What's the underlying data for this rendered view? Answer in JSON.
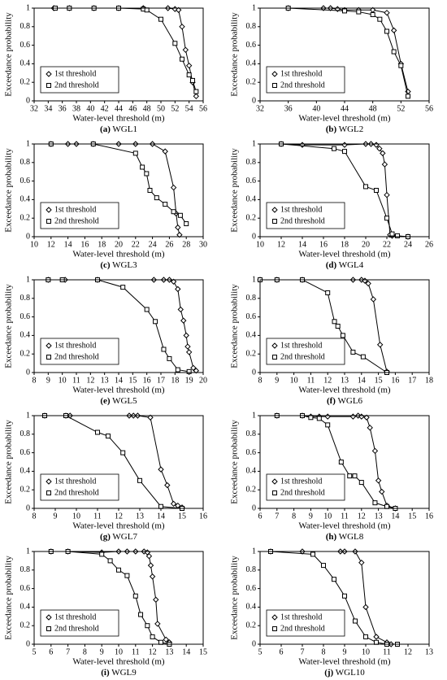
{
  "chart_data": [
    {
      "type": "line",
      "panel": "(a)",
      "title": "WGL1",
      "xlabel": "Water-level threshold (m)",
      "ylabel": "Exceedance probability",
      "xlim": [
        32,
        56
      ],
      "xticks": [
        32,
        34,
        36,
        38,
        40,
        42,
        44,
        46,
        48,
        50,
        52,
        54,
        56
      ],
      "ylim": [
        0,
        1
      ],
      "yticks": [
        0,
        0.2,
        0.4,
        0.6,
        0.8,
        1
      ],
      "legend": "lower left",
      "series": [
        {
          "name": "1st threshold",
          "color": "#000000",
          "marker": "diamond",
          "x": [
            34.8,
            37,
            40.5,
            44,
            47.5,
            51,
            52,
            52.5,
            53,
            53.5,
            54,
            54.5,
            55
          ],
          "values": [
            1,
            1,
            1,
            1,
            1,
            1,
            0.99,
            0.98,
            0.8,
            0.55,
            0.38,
            0.2,
            0.05
          ]
        },
        {
          "name": "2nd threshold",
          "color": "#000000",
          "marker": "square",
          "x": [
            35,
            37,
            40.5,
            44,
            47.5,
            48,
            50,
            52,
            53,
            54,
            54.5,
            55
          ],
          "values": [
            1,
            1,
            1,
            1,
            0.99,
            0.98,
            0.88,
            0.62,
            0.45,
            0.28,
            0.22,
            0.1
          ]
        }
      ]
    },
    {
      "type": "line",
      "panel": "(b)",
      "title": "WGL2",
      "xlabel": "Water-level threshold (m)",
      "ylabel": "Exceedance probability",
      "xlim": [
        32,
        56
      ],
      "xticks": [
        32,
        36,
        40,
        44,
        48,
        52,
        56
      ],
      "ylim": [
        0,
        1
      ],
      "yticks": [
        0,
        0.2,
        0.4,
        0.6,
        0.8,
        1
      ],
      "legend": "lower left",
      "series": [
        {
          "name": "1st threshold",
          "color": "#000000",
          "marker": "diamond",
          "x": [
            36,
            41,
            42,
            43,
            44,
            46,
            48,
            50,
            51,
            52,
            53
          ],
          "values": [
            1,
            1,
            1,
            0.99,
            0.98,
            0.98,
            0.98,
            0.95,
            0.76,
            0.4,
            0.1
          ]
        },
        {
          "name": "2nd threshold",
          "color": "#000000",
          "marker": "square",
          "x": [
            36,
            44,
            46,
            48,
            49,
            50,
            51,
            52,
            53
          ],
          "values": [
            1,
            0.97,
            0.96,
            0.93,
            0.88,
            0.75,
            0.53,
            0.38,
            0.05
          ]
        }
      ]
    },
    {
      "type": "line",
      "panel": "(c)",
      "title": "WGL3",
      "xlabel": "Water-level threshold (m)",
      "ylabel": "Exceedance probability",
      "xlim": [
        10,
        30
      ],
      "xticks": [
        10,
        12,
        14,
        16,
        18,
        20,
        22,
        24,
        26,
        28,
        30
      ],
      "ylim": [
        0,
        1
      ],
      "yticks": [
        0,
        0.2,
        0.4,
        0.6,
        0.8,
        1
      ],
      "legend": "lower left",
      "series": [
        {
          "name": "1st threshold",
          "color": "#000000",
          "marker": "diamond",
          "x": [
            12,
            14,
            15,
            17,
            20,
            22,
            24,
            25.5,
            26.5,
            26.8,
            27,
            27.2
          ],
          "values": [
            1,
            1,
            1,
            1,
            1,
            1,
            1,
            0.92,
            0.53,
            0.25,
            0.1,
            0.02
          ]
        },
        {
          "name": "2nd threshold",
          "color": "#000000",
          "marker": "square",
          "x": [
            12,
            17,
            22,
            22.8,
            23.3,
            23.7,
            24.5,
            25.5,
            26.5,
            27.3,
            28
          ],
          "values": [
            1,
            1,
            0.9,
            0.75,
            0.68,
            0.5,
            0.42,
            0.35,
            0.27,
            0.23,
            0.14
          ]
        }
      ]
    },
    {
      "type": "line",
      "panel": "(d)",
      "title": "WGL4",
      "xlabel": "Water-level threshold (m)",
      "ylabel": "Exceedance probability",
      "xlim": [
        10,
        26
      ],
      "xticks": [
        10,
        12,
        14,
        16,
        18,
        20,
        22,
        24,
        26
      ],
      "ylim": [
        0,
        1
      ],
      "yticks": [
        0,
        0.2,
        0.4,
        0.6,
        0.8,
        1
      ],
      "legend": "lower left",
      "series": [
        {
          "name": "1st threshold",
          "color": "#000000",
          "marker": "diamond",
          "x": [
            12,
            14,
            18,
            20,
            20.5,
            21,
            21.3,
            21.6,
            21.8,
            22,
            22.3,
            22.5,
            24
          ],
          "values": [
            1,
            0.99,
            0.99,
            1,
            1,
            0.99,
            0.95,
            0.9,
            0.78,
            0.45,
            0.02,
            0.01,
            0
          ]
        },
        {
          "name": "2nd threshold",
          "color": "#000000",
          "marker": "square",
          "x": [
            12,
            17,
            18,
            20,
            21,
            22,
            22.5,
            23,
            24
          ],
          "values": [
            1,
            0.95,
            0.92,
            0.54,
            0.5,
            0.2,
            0.03,
            0.01,
            0
          ]
        }
      ]
    },
    {
      "type": "line",
      "panel": "(e)",
      "title": "WGL5",
      "xlabel": "Water-level threshold (m)",
      "ylabel": "Exceedance probability",
      "xlim": [
        8,
        20
      ],
      "xticks": [
        8,
        9,
        10,
        11,
        12,
        13,
        14,
        15,
        16,
        17,
        18,
        19,
        20
      ],
      "ylim": [
        0,
        1
      ],
      "yticks": [
        0,
        0.2,
        0.4,
        0.6,
        0.8,
        1
      ],
      "legend": "lower left",
      "series": [
        {
          "name": "1st threshold",
          "color": "#000000",
          "marker": "diamond",
          "x": [
            9,
            10.2,
            12.5,
            16.5,
            17.2,
            17.6,
            17.9,
            18.2,
            18.4,
            18.6,
            18.8,
            18.9,
            19,
            19.3,
            19.5
          ],
          "values": [
            1,
            1,
            1,
            1,
            1,
            1,
            0.98,
            0.9,
            0.68,
            0.56,
            0.4,
            0.28,
            0.22,
            0.05,
            0.02
          ]
        },
        {
          "name": "2nd threshold",
          "color": "#000000",
          "marker": "square",
          "x": [
            9,
            10,
            12.5,
            14.3,
            16,
            16.6,
            17.2,
            17.6,
            18.2,
            19
          ],
          "values": [
            1,
            1,
            1,
            0.92,
            0.68,
            0.55,
            0.25,
            0.15,
            0.03,
            0.01
          ]
        }
      ]
    },
    {
      "type": "line",
      "panel": "(f)",
      "title": "WGL6",
      "xlabel": "Water-level threshold (m)",
      "ylabel": "Exceedance probability",
      "xlim": [
        8,
        18
      ],
      "xticks": [
        8,
        9,
        10,
        11,
        12,
        13,
        14,
        15,
        16,
        17,
        18
      ],
      "ylim": [
        0,
        1
      ],
      "yticks": [
        0,
        0.2,
        0.4,
        0.6,
        0.8,
        1
      ],
      "legend": "lower left",
      "series": [
        {
          "name": "1st threshold",
          "color": "#000000",
          "marker": "diamond",
          "x": [
            8,
            9,
            10.5,
            13.5,
            14,
            14.2,
            14.4,
            14.7,
            15.1,
            15.5
          ],
          "values": [
            1,
            1,
            1,
            1,
            1,
            0.99,
            0.96,
            0.79,
            0.3,
            0.01
          ]
        },
        {
          "name": "2nd threshold",
          "color": "#000000",
          "marker": "square",
          "x": [
            8,
            9,
            10.5,
            12,
            12.4,
            12.6,
            12.9,
            13.5,
            14.1,
            15.5
          ],
          "values": [
            1,
            1,
            1,
            0.86,
            0.55,
            0.5,
            0.4,
            0.22,
            0.17,
            0
          ]
        }
      ]
    },
    {
      "type": "line",
      "panel": "(g)",
      "title": "WGL7",
      "xlabel": "Water-level threshold (m)",
      "ylabel": "Exceedance probability",
      "xlim": [
        8,
        16
      ],
      "xticks": [
        8,
        9,
        10,
        11,
        12,
        13,
        14,
        15,
        16
      ],
      "ylim": [
        0,
        1
      ],
      "yticks": [
        0,
        0.2,
        0.4,
        0.6,
        0.8,
        1
      ],
      "legend": "lower left",
      "series": [
        {
          "name": "1st threshold",
          "color": "#000000",
          "marker": "diamond",
          "x": [
            8.5,
            9.5,
            9.7,
            12.5,
            12.7,
            12.9,
            13.5,
            14,
            14.3,
            14.6,
            14.8,
            15
          ],
          "values": [
            1,
            1,
            1,
            1,
            1,
            1,
            0.98,
            0.42,
            0.25,
            0.05,
            0.03,
            0.01
          ]
        },
        {
          "name": "2nd threshold",
          "color": "#000000",
          "marker": "square",
          "x": [
            8.5,
            9.5,
            11,
            11.5,
            12.2,
            13,
            14,
            15
          ],
          "values": [
            1,
            1,
            0.82,
            0.78,
            0.6,
            0.3,
            0.02,
            0
          ]
        }
      ]
    },
    {
      "type": "line",
      "panel": "(h)",
      "title": "WGL8",
      "xlabel": "Water-level threshold (m)",
      "ylabel": "Exceedance probability",
      "xlim": [
        6,
        16
      ],
      "xticks": [
        6,
        7,
        8,
        9,
        10,
        11,
        12,
        13,
        14,
        15,
        16
      ],
      "ylim": [
        0,
        1
      ],
      "yticks": [
        0,
        0.2,
        0.4,
        0.6,
        0.8,
        1
      ],
      "legend": "lower left",
      "series": [
        {
          "name": "1st threshold",
          "color": "#000000",
          "marker": "diamond",
          "x": [
            7,
            8.5,
            9,
            9.5,
            10,
            11.5,
            11.8,
            12,
            12.3,
            12.5,
            12.8,
            13,
            13.2,
            13.5,
            14
          ],
          "values": [
            1,
            1,
            0.99,
            0.99,
            0.99,
            0.99,
            1,
            0.99,
            0.98,
            0.87,
            0.62,
            0.3,
            0.18,
            0.03,
            0
          ]
        },
        {
          "name": "2nd threshold",
          "color": "#000000",
          "marker": "square",
          "x": [
            7,
            8.5,
            9,
            9.5,
            10,
            10.8,
            11.3,
            11.6,
            12,
            12.8,
            13.5,
            14
          ],
          "values": [
            1,
            1,
            0.98,
            0.97,
            0.9,
            0.5,
            0.35,
            0.35,
            0.28,
            0.06,
            0.02,
            0
          ]
        }
      ]
    },
    {
      "type": "line",
      "panel": "(i)",
      "title": "WGL9",
      "xlabel": "Water-level threshold (m)",
      "ylabel": "Exceedance probability",
      "xlim": [
        5,
        15
      ],
      "xticks": [
        5,
        6,
        7,
        8,
        9,
        10,
        11,
        12,
        13,
        14,
        15
      ],
      "ylim": [
        0,
        1
      ],
      "yticks": [
        0,
        0.2,
        0.4,
        0.6,
        0.8,
        1
      ],
      "legend": "lower left",
      "series": [
        {
          "name": "1st threshold",
          "color": "#000000",
          "marker": "diamond",
          "x": [
            6,
            7,
            9,
            10,
            10.5,
            11,
            11.5,
            11.7,
            11.8,
            11.9,
            12,
            12.2,
            12.3,
            12.8,
            13
          ],
          "values": [
            1,
            1,
            0.99,
            1,
            1,
            1,
            1,
            0.99,
            0.95,
            0.85,
            0.73,
            0.48,
            0.22,
            0.05,
            0.02
          ]
        },
        {
          "name": "2nd threshold",
          "color": "#000000",
          "marker": "square",
          "x": [
            6,
            7,
            9,
            9.5,
            10,
            10.5,
            11,
            11.3,
            11.7,
            12,
            12.5,
            13
          ],
          "values": [
            1,
            1,
            0.97,
            0.9,
            0.8,
            0.74,
            0.52,
            0.32,
            0.2,
            0.08,
            0.02,
            0
          ]
        }
      ]
    },
    {
      "type": "line",
      "panel": "(j)",
      "title": "WGL10",
      "xlabel": "Water-level threshold (m)",
      "ylabel": "Exceedance probability",
      "xlim": [
        5,
        13
      ],
      "xticks": [
        5,
        6,
        7,
        8,
        9,
        10,
        11,
        12,
        13
      ],
      "ylim": [
        0,
        1
      ],
      "yticks": [
        0,
        0.2,
        0.4,
        0.6,
        0.8,
        1
      ],
      "legend": "lower left",
      "series": [
        {
          "name": "1st threshold",
          "color": "#000000",
          "marker": "diamond",
          "x": [
            5.5,
            7,
            8.8,
            9,
            9.5,
            9.8,
            10,
            10.5,
            11,
            11.2
          ],
          "values": [
            1,
            1,
            1,
            1,
            1,
            0.88,
            0.4,
            0.08,
            0.02,
            0
          ]
        },
        {
          "name": "2nd threshold",
          "color": "#000000",
          "marker": "square",
          "x": [
            5.5,
            7.5,
            8,
            8.5,
            9,
            9.5,
            10,
            10.5,
            11,
            11.5
          ],
          "values": [
            1,
            0.97,
            0.85,
            0.7,
            0.52,
            0.25,
            0.08,
            0.02,
            0,
            0
          ]
        }
      ]
    }
  ]
}
